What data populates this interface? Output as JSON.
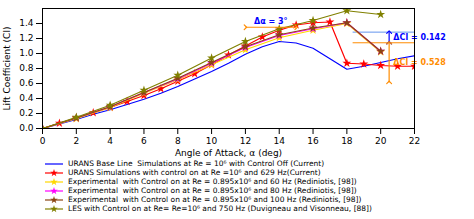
{
  "chart_data": {
    "type": "line",
    "xlabel": "Angle of Attack, α (deg)",
    "ylabel": "Lift Coefficient (Cl)",
    "xlim": [
      0,
      22
    ],
    "ylim": [
      0,
      1.6
    ],
    "xticks": [
      0,
      2,
      4,
      6,
      8,
      10,
      12,
      14,
      16,
      18,
      20,
      22
    ],
    "yticks": [
      {
        "value": 0,
        "label": "0.0"
      },
      0.2,
      0.4,
      0.6,
      0.8,
      {
        "value": 1.0,
        "label": "1.0"
      },
      1.2,
      1.4
    ],
    "series": [
      {
        "name": "URANS Base Line  Simulations at Re = 10⁶ with Control Off (Current)",
        "color": "blue",
        "x": [
          0,
          1,
          2,
          3,
          4,
          5,
          6,
          7,
          8,
          9,
          10,
          11,
          12,
          13,
          14,
          15,
          16,
          17,
          18,
          19,
          20,
          21,
          22
        ],
        "values": [
          0,
          0.06,
          0.12,
          0.19,
          0.25,
          0.32,
          0.39,
          0.47,
          0.56,
          0.66,
          0.76,
          0.87,
          0.99,
          1.09,
          1.16,
          1.14,
          1.07,
          0.93,
          0.79,
          0.83,
          0.88,
          0.93,
          0.97
        ]
      },
      {
        "name": "URANS Simulations with control on at Re =10⁶ and 629 Hz(Current)",
        "color": "red",
        "marker": "star",
        "x": [
          0,
          1,
          2,
          3,
          4,
          5,
          6,
          7,
          8,
          9,
          10,
          11,
          12,
          13,
          14,
          15,
          16,
          17,
          18,
          19,
          20,
          21,
          22
        ],
        "values": [
          0,
          0.07,
          0.14,
          0.21,
          0.28,
          0.36,
          0.44,
          0.53,
          0.63,
          0.73,
          0.85,
          0.98,
          1.1,
          1.22,
          1.31,
          1.38,
          1.41,
          1.42,
          0.87,
          0.86,
          0.84,
          0.83,
          0.83
        ]
      },
      {
        "name": "Experimental  with Control on at Re = 0.895x10⁶ and 60 Hz (Rediniotis, [98])",
        "color": "gold",
        "marker": "star",
        "x": [
          0,
          2,
          4,
          6,
          8,
          10,
          12,
          14,
          16,
          18,
          20
        ],
        "values": [
          0,
          0.13,
          0.28,
          0.47,
          0.65,
          0.85,
          1.05,
          1.21,
          1.31,
          1.4,
          1.02
        ]
      },
      {
        "name": "Experimental  with Control on at Re = 0.895x10⁶ and 80 Hz (Rediniotis, [98])",
        "color": "magenta",
        "marker": "star",
        "x": [
          0,
          2,
          4,
          6,
          8,
          10,
          12,
          14,
          16,
          18,
          20
        ],
        "values": [
          0,
          0.14,
          0.29,
          0.48,
          0.66,
          0.87,
          1.08,
          1.24,
          1.33,
          1.41,
          1.03
        ]
      },
      {
        "name": "Experimental  with Control on at Re = 0.895x10⁶ and 100 Hz (Rediniotis, [98])",
        "color": "saddlebrown",
        "marker": "star",
        "x": [
          0,
          2,
          4,
          6,
          8,
          10,
          12,
          14,
          16,
          18,
          20
        ],
        "values": [
          0,
          0.14,
          0.29,
          0.48,
          0.67,
          0.88,
          1.09,
          1.25,
          1.34,
          1.41,
          1.03
        ]
      },
      {
        "name": "LES with Control on at Re= Re=10⁶ and 750 Hz (Duvigneau and Visonneau, [88])",
        "color": "olive",
        "marker": "star",
        "x": [
          0,
          2,
          4,
          6,
          8,
          10,
          12,
          14,
          16,
          18,
          20
        ],
        "values": [
          0,
          0.15,
          0.31,
          0.51,
          0.71,
          0.94,
          1.16,
          1.33,
          1.44,
          1.57,
          1.52
        ]
      }
    ],
    "annotations": [
      {
        "text": "Δα = 3°",
        "x": 13.5,
        "y": 1.4,
        "color": "blue"
      },
      {
        "text": "ΔCl = 0.142",
        "x": 20.75,
        "y": 1.214,
        "color": "blue"
      },
      {
        "text": "ΔCl = 0.528",
        "x": 20.75,
        "y": 0.879,
        "color": "darkorange"
      }
    ],
    "arrows": [
      {
        "x1": 12,
        "y1": 1.35,
        "x2": 15,
        "y2": 1.35,
        "color": "darkorange"
      },
      {
        "x1": 20.5,
        "y1": 1.143,
        "x2": 20.5,
        "y2": 1.285,
        "color": "blue"
      },
      {
        "x1": 20.5,
        "y1": 0.615,
        "x2": 20.5,
        "y2": 1.143,
        "color": "darkorange"
      }
    ],
    "reference_lines": [
      {
        "y": 1.285,
        "x1": 18.37,
        "x2": 22,
        "color": "cornflowerblue"
      },
      {
        "y": 1.143,
        "x1": 18.37,
        "x2": 22,
        "color": "darkorange"
      }
    ]
  }
}
